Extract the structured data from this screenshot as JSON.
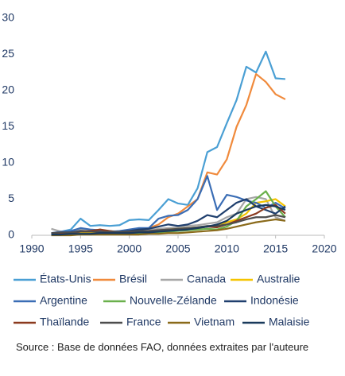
{
  "chart_data": {
    "type": "line",
    "source": "Source : Base de données FAO, données extraites par l'auteure",
    "x": [
      1992,
      1993,
      1994,
      1995,
      1996,
      1997,
      1998,
      1999,
      2000,
      2001,
      2002,
      2003,
      2004,
      2005,
      2006,
      2007,
      2008,
      2009,
      2010,
      2011,
      2012,
      2013,
      2014,
      2015,
      2016
    ],
    "xlim": [
      1990,
      2020
    ],
    "xticks": [
      1990,
      1995,
      2000,
      2005,
      2010,
      2015,
      2020
    ],
    "ylim": [
      0,
      30
    ],
    "yticks": [
      0,
      5,
      10,
      15,
      20,
      25,
      30
    ],
    "series": [
      {
        "name": "États-Unis",
        "color": "#4a9fd4",
        "values": [
          0.2,
          0.5,
          0.8,
          2.3,
          1.3,
          1.4,
          1.3,
          1.4,
          2.1,
          2.2,
          2.1,
          3.5,
          5.0,
          4.4,
          4.2,
          6.5,
          11.5,
          12.2,
          15.5,
          18.7,
          23.3,
          22.5,
          25.4,
          21.7,
          21.6
        ]
      },
      {
        "name": "Brésil",
        "color": "#f08a3c",
        "values": [
          0.1,
          0.2,
          0.3,
          0.5,
          0.6,
          0.8,
          0.5,
          0.5,
          0.6,
          0.8,
          1.0,
          1.5,
          2.5,
          3.0,
          4.0,
          5.0,
          8.7,
          8.4,
          10.5,
          15.0,
          18.0,
          22.3,
          21.2,
          19.5,
          18.8
        ]
      },
      {
        "name": "Canada",
        "color": "#a6a6a6",
        "values": [
          0.9,
          0.5,
          0.6,
          0.8,
          0.7,
          0.6,
          0.6,
          0.5,
          0.6,
          0.7,
          0.7,
          0.9,
          1.0,
          1.1,
          1.3,
          1.4,
          1.6,
          1.8,
          2.5,
          3.0,
          5.0,
          5.3,
          5.0,
          2.5,
          2.0
        ]
      },
      {
        "name": "Australie",
        "color": "#f5c400",
        "values": [
          0.1,
          0.1,
          0.2,
          0.3,
          0.3,
          0.3,
          0.3,
          0.3,
          0.4,
          0.4,
          0.5,
          0.6,
          0.8,
          0.9,
          1.0,
          1.1,
          1.2,
          1.3,
          1.8,
          2.2,
          3.0,
          4.5,
          4.7,
          5.0,
          4.0
        ]
      },
      {
        "name": "Argentine",
        "color": "#3a6db5",
        "values": [
          0.3,
          0.5,
          0.6,
          1.0,
          0.8,
          0.7,
          0.5,
          0.6,
          0.8,
          1.0,
          1.0,
          2.3,
          2.7,
          2.8,
          3.5,
          5.0,
          8.2,
          3.5,
          5.6,
          5.3,
          4.8,
          4.5,
          3.8,
          4.5,
          3.7
        ]
      },
      {
        "name": "Nouvelle-Zélande",
        "color": "#6ab04c",
        "values": [
          0.1,
          0.1,
          0.1,
          0.2,
          0.2,
          0.2,
          0.2,
          0.2,
          0.2,
          0.3,
          0.3,
          0.4,
          0.5,
          0.6,
          0.7,
          0.8,
          0.9,
          0.8,
          1.2,
          2.0,
          4.0,
          5.0,
          6.1,
          4.0,
          2.5
        ]
      },
      {
        "name": "Indonésie",
        "color": "#1f3f6e",
        "values": [
          0.2,
          0.3,
          0.4,
          0.6,
          0.5,
          0.5,
          0.4,
          0.5,
          0.6,
          0.8,
          0.9,
          1.2,
          1.5,
          1.3,
          1.5,
          2.0,
          2.8,
          2.5,
          3.5,
          4.5,
          5.0,
          4.0,
          3.5,
          3.0,
          4.0
        ]
      },
      {
        "name": "Thaïlande",
        "color": "#8b3a1f",
        "values": [
          0.1,
          0.2,
          0.3,
          0.5,
          0.6,
          0.8,
          0.6,
          0.4,
          0.5,
          0.5,
          0.6,
          0.7,
          0.8,
          0.8,
          0.9,
          1.0,
          1.2,
          1.1,
          1.5,
          2.0,
          2.5,
          3.0,
          3.8,
          4.2,
          3.0
        ]
      },
      {
        "name": "France",
        "color": "#4d4d4d",
        "values": [
          0.3,
          0.4,
          0.4,
          0.5,
          0.5,
          0.5,
          0.5,
          0.5,
          0.5,
          0.6,
          0.6,
          0.7,
          0.8,
          0.9,
          1.0,
          1.1,
          1.3,
          1.3,
          1.5,
          1.8,
          2.2,
          2.5,
          2.5,
          2.8,
          2.5
        ]
      },
      {
        "name": "Vietnam",
        "color": "#8a6a1a",
        "values": [
          0,
          0,
          0,
          0.1,
          0.1,
          0.1,
          0.1,
          0.1,
          0.1,
          0.1,
          0.2,
          0.2,
          0.3,
          0.3,
          0.4,
          0.5,
          0.6,
          0.7,
          0.9,
          1.2,
          1.5,
          1.8,
          2.0,
          2.2,
          2.0
        ]
      },
      {
        "name": "Malaisie",
        "color": "#1a3a5c",
        "values": [
          0.1,
          0.1,
          0.2,
          0.2,
          0.2,
          0.3,
          0.3,
          0.3,
          0.3,
          0.4,
          0.4,
          0.5,
          0.6,
          0.7,
          0.8,
          1.0,
          1.2,
          1.5,
          2.0,
          3.0,
          3.5,
          4.0,
          4.2,
          4.0,
          3.5
        ]
      }
    ]
  }
}
